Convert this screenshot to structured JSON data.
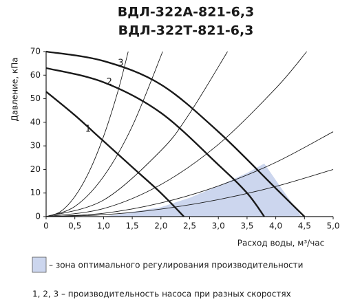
{
  "chart_data": {
    "type": "line",
    "title": [
      "ВДЛ-322А-821-6,3",
      "ВДЛ-322Т-821-6,3"
    ],
    "x_label": "Расход воды, м³/час",
    "y_label": "Давление, кПа",
    "xlim": [
      0,
      5
    ],
    "ylim": [
      0,
      70
    ],
    "xticks": [
      0,
      {
        "value": 0.5,
        "label": "0,5"
      },
      {
        "value": 1,
        "label": "1,0"
      },
      {
        "value": 1.5,
        "label": "1,5"
      },
      {
        "value": 2,
        "label": "2,0"
      },
      {
        "value": 2.5,
        "label": "2,5"
      },
      {
        "value": 3,
        "label": "3,0"
      },
      {
        "value": 3.5,
        "label": "3,5"
      },
      {
        "value": 4,
        "label": "4,0"
      },
      {
        "value": 4.5,
        "label": "4,5"
      },
      {
        "value": 5,
        "label": "5,0"
      }
    ],
    "yticks": [
      0,
      10,
      20,
      30,
      40,
      50,
      60,
      70
    ],
    "region": {
      "color": "#ccd6ee",
      "x": [
        1.0,
        2,
        2.5,
        3,
        3.5,
        3.8,
        4.1,
        4.45
      ],
      "values": [
        0,
        4,
        8,
        13,
        18.5,
        22.5,
        12,
        0
      ]
    },
    "series": [
      {
        "name": "1",
        "color": "#1a1a1a",
        "x": [
          0,
          0.5,
          1,
          1.5,
          2,
          2.4
        ],
        "values": [
          53,
          43,
          32,
          21,
          10,
          0
        ]
      },
      {
        "name": "2",
        "color": "#1a1a1a",
        "x": [
          0,
          1,
          2,
          3,
          3.5,
          3.8
        ],
        "values": [
          63,
          57,
          44,
          22,
          10,
          0
        ]
      },
      {
        "name": "3",
        "color": "#1a1a1a",
        "x": [
          0,
          1,
          2,
          3,
          4,
          4.5
        ],
        "values": [
          70,
          66,
          56,
          36,
          12,
          0
        ]
      }
    ],
    "system_curves": [
      {
        "color": "#1a1a1a",
        "x": [
          0,
          0.25,
          0.5,
          0.75,
          1,
          1.25,
          1.43
        ],
        "values": [
          0,
          2.1,
          8.5,
          19.1,
          34,
          53.1,
          70
        ]
      },
      {
        "color": "#1a1a1a",
        "x": [
          0,
          0.5,
          1,
          1.5,
          2.03
        ],
        "values": [
          0,
          4.3,
          17,
          38.3,
          70
        ]
      },
      {
        "color": "#1a1a1a",
        "x": [
          0,
          1,
          2,
          2.5,
          3.16
        ],
        "values": [
          0,
          7,
          28,
          43.8,
          70
        ]
      },
      {
        "color": "#1a1a1a",
        "x": [
          0,
          1,
          2,
          3,
          4,
          4.54
        ],
        "values": [
          0,
          3.4,
          13.6,
          30.6,
          54.4,
          70
        ]
      },
      {
        "color": "#1a1a1a",
        "x": [
          0,
          1,
          2,
          3,
          4,
          5
        ],
        "values": [
          0,
          1.4,
          5.8,
          13,
          23,
          36
        ]
      },
      {
        "color": "#1a1a1a",
        "x": [
          0,
          1,
          2,
          3,
          4,
          5
        ],
        "values": [
          0,
          0.8,
          3.2,
          7.2,
          12.8,
          20
        ]
      }
    ],
    "curve_labels": [
      {
        "text": "1",
        "x": 0.73,
        "y": 37
      },
      {
        "text": "2",
        "x": 1.1,
        "y": 57
      },
      {
        "text": "3",
        "x": 1.3,
        "y": 65
      }
    ],
    "legend": [
      "– зона оптимального регулирования производительности",
      "1, 2, 3 – производительность насоса при разных скоростях"
    ]
  }
}
